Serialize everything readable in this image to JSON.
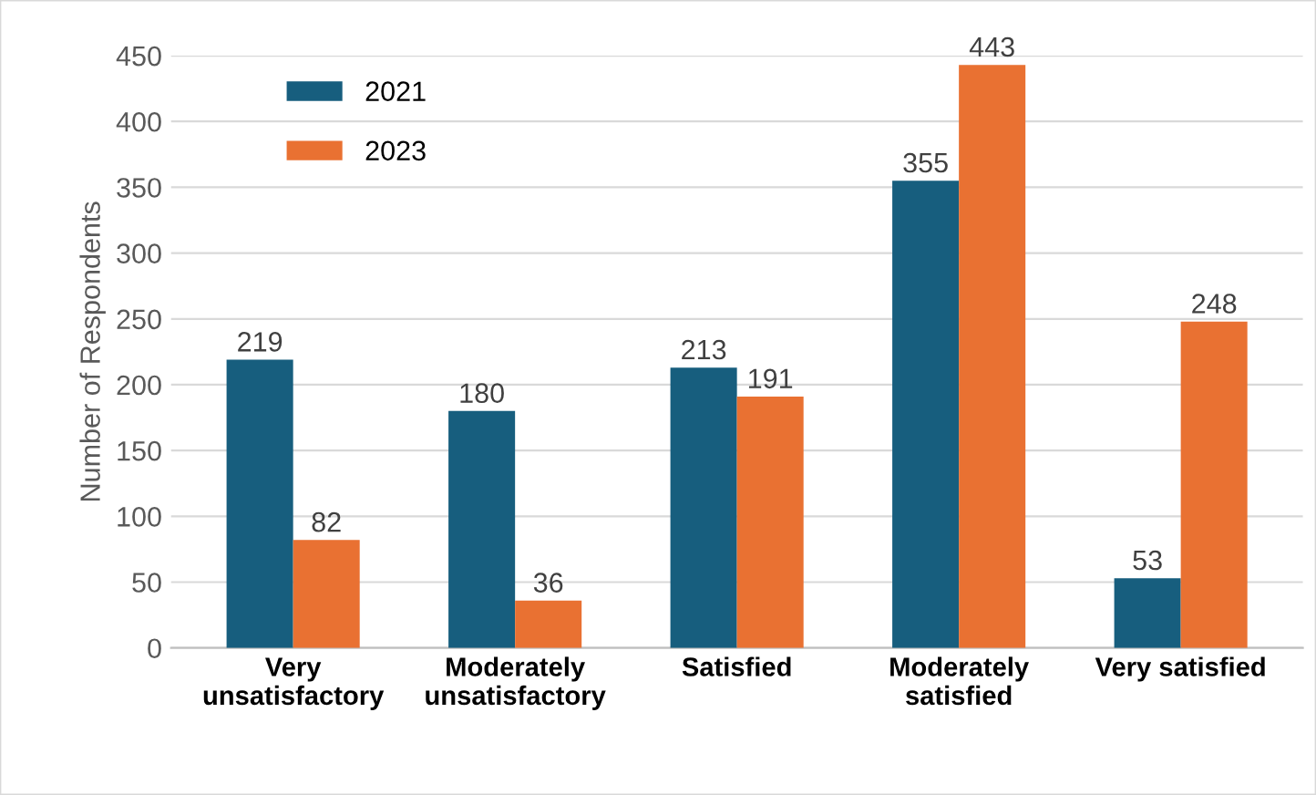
{
  "chart_data": {
    "type": "bar",
    "ylabel": "Number of Respondents",
    "categories": [
      "Very\nunsatisfactory",
      "Moderately\nunsatisfactory",
      "Satisfied",
      "Moderately\nsatisfied",
      "Very satisfied"
    ],
    "series": [
      {
        "name": "2021",
        "color": "#175e7e",
        "values": [
          219,
          180,
          213,
          355,
          53
        ]
      },
      {
        "name": "2023",
        "color": "#e97132",
        "values": [
          82,
          36,
          191,
          443,
          248
        ]
      }
    ],
    "ylim": [
      0,
      450
    ],
    "yticks": [
      0,
      50,
      100,
      150,
      200,
      250,
      300,
      350,
      400,
      450
    ],
    "grid": "y",
    "legend": "top left",
    "data_labels": true
  }
}
